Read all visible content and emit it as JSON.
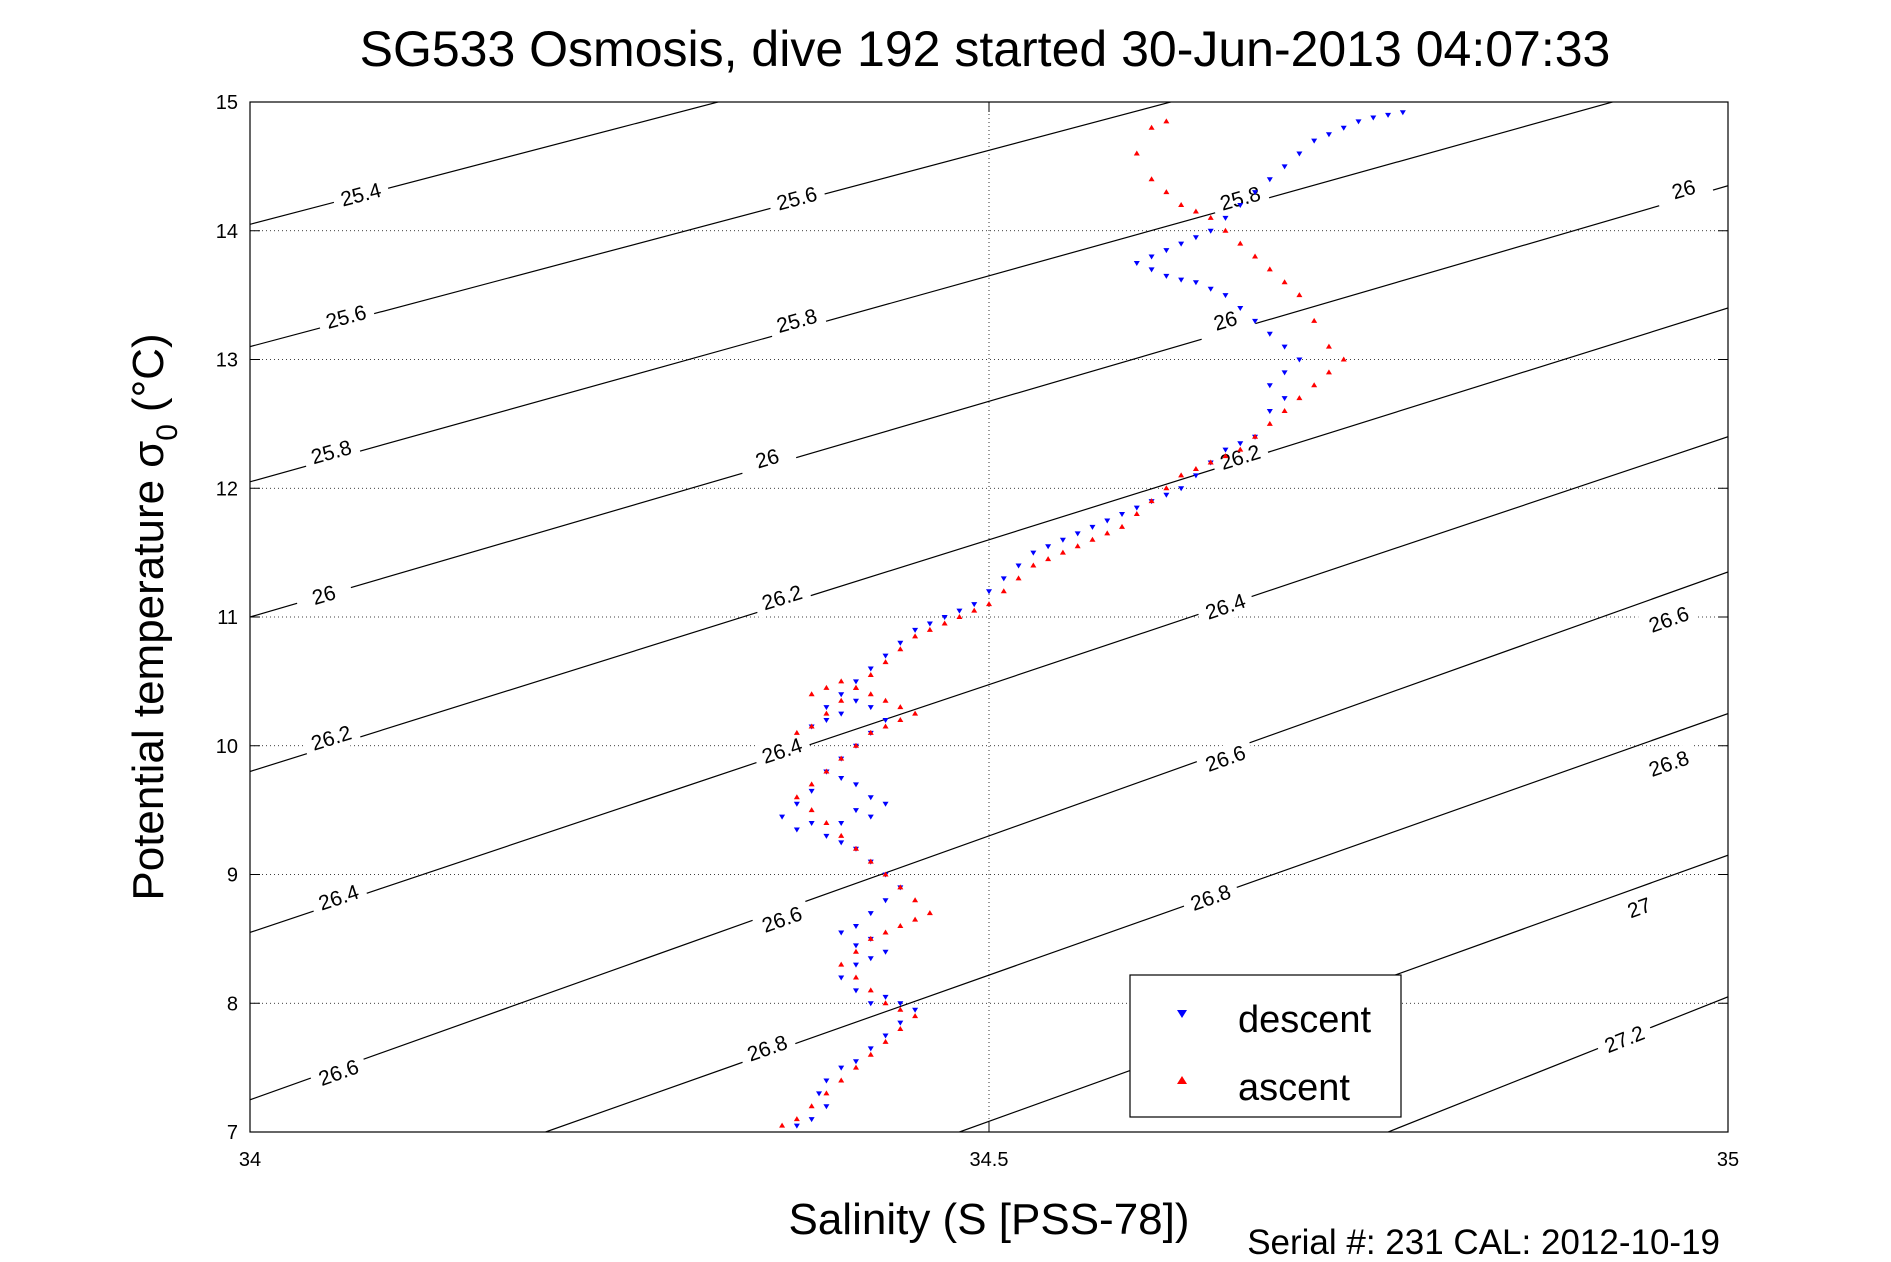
{
  "chart_data": {
    "type": "scatter",
    "title": "SG533 Osmosis, dive 192 started 30-Jun-2013 04:07:33",
    "xlabel": "Salinity (S [PSS-78])",
    "ylabel": "Potential temperature",
    "ylabel_symbol": "σ",
    "ylabel_subscript": "0",
    "ylabel_unit": "(°C)",
    "xlim": [
      34,
      35
    ],
    "ylim": [
      7,
      15
    ],
    "xticks": [
      34,
      34.5,
      35
    ],
    "xtick_labels": [
      "34",
      "34.5",
      "35"
    ],
    "yticks": [
      7,
      8,
      9,
      10,
      11,
      12,
      13,
      14,
      15
    ],
    "ytick_labels": [
      "7",
      "8",
      "9",
      "10",
      "11",
      "12",
      "13",
      "14",
      "15"
    ],
    "grid": true,
    "legend_position": "bottom-right",
    "footer": "Serial #: 231  CAL: 2012-10-19",
    "contour_levels": [
      {
        "level": 25.4,
        "label": "25.4",
        "line": [
          [
            34.0,
            14.05
          ],
          [
            35.0,
            17.05
          ]
        ],
        "label_positions": [
          [
            34.075,
            14.28
          ]
        ]
      },
      {
        "level": 25.6,
        "label": "25.6",
        "line": [
          [
            34.0,
            13.1
          ],
          [
            35.0,
            16.15
          ]
        ],
        "label_positions": [
          [
            34.065,
            13.33
          ],
          [
            34.37,
            14.25
          ]
        ]
      },
      {
        "level": 25.8,
        "label": "25.8",
        "line": [
          [
            34.0,
            12.05
          ],
          [
            35.0,
            15.25
          ]
        ],
        "label_positions": [
          [
            34.055,
            12.28
          ],
          [
            34.37,
            13.3
          ],
          [
            34.67,
            14.25
          ]
        ]
      },
      {
        "level": 26,
        "label": "26",
        "line": [
          [
            34.0,
            11.0
          ],
          [
            35.0,
            14.35
          ]
        ],
        "label_positions": [
          [
            34.05,
            11.17
          ],
          [
            34.35,
            12.23
          ],
          [
            34.66,
            13.3
          ],
          [
            34.97,
            14.32
          ]
        ]
      },
      {
        "level": 26.2,
        "label": "26.2",
        "line": [
          [
            34.0,
            9.8
          ],
          [
            35.0,
            13.4
          ]
        ],
        "label_positions": [
          [
            34.055,
            10.06
          ],
          [
            34.36,
            11.15
          ],
          [
            34.67,
            12.24
          ]
        ]
      },
      {
        "level": 26.4,
        "label": "26.4",
        "line": [
          [
            34.0,
            8.55
          ],
          [
            35.0,
            12.4
          ]
        ],
        "label_positions": [
          [
            34.06,
            8.82
          ],
          [
            34.36,
            9.96
          ],
          [
            34.66,
            11.08
          ]
        ]
      },
      {
        "level": 26.6,
        "label": "26.6",
        "line": [
          [
            34.0,
            7.25
          ],
          [
            35.0,
            11.35
          ]
        ],
        "label_positions": [
          [
            34.06,
            7.46
          ],
          [
            34.36,
            8.65
          ],
          [
            34.66,
            9.9
          ],
          [
            34.96,
            10.98
          ]
        ]
      },
      {
        "level": 26.8,
        "label": "26.8",
        "line": [
          [
            34.2,
            7.0
          ],
          [
            35.0,
            10.25
          ]
        ],
        "label_positions": [
          [
            34.35,
            7.65
          ],
          [
            34.65,
            8.82
          ],
          [
            34.96,
            9.86
          ]
        ]
      },
      {
        "level": 27,
        "label": "27",
        "line": [
          [
            34.48,
            7.0
          ],
          [
            35.0,
            9.15
          ]
        ],
        "label_positions": [
          [
            34.94,
            8.74
          ]
        ]
      },
      {
        "level": 27.2,
        "label": "27.2",
        "line": [
          [
            34.77,
            7.0
          ],
          [
            35.0,
            8.05
          ]
        ],
        "label_positions": [
          [
            34.93,
            7.72
          ]
        ]
      }
    ],
    "series": [
      {
        "name": "descent",
        "color": "#0000ff",
        "marker": "triangle-down",
        "x": [
          34.37,
          34.38,
          34.39,
          34.385,
          34.39,
          34.4,
          34.41,
          34.42,
          34.43,
          34.44,
          34.45,
          34.44,
          34.43,
          34.42,
          34.41,
          34.4,
          34.41,
          34.42,
          34.43,
          34.42,
          34.41,
          34.4,
          34.41,
          34.42,
          34.43,
          34.44,
          34.43,
          34.42,
          34.41,
          34.4,
          34.39,
          34.4,
          34.41,
          34.42,
          34.43,
          34.42,
          34.41,
          34.4,
          34.39,
          34.38,
          34.37,
          34.36,
          34.37,
          34.38,
          34.39,
          34.4,
          34.41,
          34.42,
          34.43,
          34.42,
          34.41,
          34.4,
          34.39,
          34.38,
          34.39,
          34.4,
          34.41,
          34.42,
          34.43,
          34.44,
          34.45,
          34.46,
          34.47,
          34.48,
          34.49,
          34.5,
          34.51,
          34.52,
          34.53,
          34.54,
          34.55,
          34.56,
          34.57,
          34.58,
          34.59,
          34.6,
          34.61,
          34.62,
          34.63,
          34.64,
          34.65,
          34.66,
          34.67,
          34.68,
          34.69,
          34.7,
          34.69,
          34.7,
          34.71,
          34.7,
          34.69,
          34.68,
          34.67,
          34.66,
          34.65,
          34.64,
          34.63,
          34.62,
          34.61,
          34.6,
          34.61,
          34.62,
          34.63,
          34.64,
          34.65,
          34.66,
          34.67,
          34.68,
          34.69,
          34.7,
          34.71,
          34.72,
          34.73,
          34.74,
          34.75,
          34.76,
          34.77,
          34.78
        ],
        "y": [
          7.05,
          7.1,
          7.2,
          7.3,
          7.4,
          7.5,
          7.55,
          7.65,
          7.75,
          7.85,
          7.95,
          8.0,
          8.05,
          8.0,
          8.1,
          8.2,
          8.3,
          8.35,
          8.4,
          8.5,
          8.45,
          8.55,
          8.6,
          8.7,
          8.8,
          8.9,
          9.0,
          9.1,
          9.2,
          9.25,
          9.3,
          9.4,
          9.5,
          9.45,
          9.55,
          9.6,
          9.7,
          9.75,
          9.8,
          9.4,
          9.35,
          9.45,
          9.55,
          9.65,
          9.8,
          9.9,
          10.0,
          10.1,
          10.2,
          10.3,
          10.35,
          10.25,
          10.2,
          10.15,
          10.3,
          10.4,
          10.5,
          10.6,
          10.7,
          10.8,
          10.9,
          10.95,
          11.0,
          11.05,
          11.1,
          11.2,
          11.3,
          11.4,
          11.5,
          11.55,
          11.6,
          11.65,
          11.7,
          11.75,
          11.8,
          11.85,
          11.9,
          11.95,
          12.0,
          12.1,
          12.2,
          12.3,
          12.35,
          12.4,
          12.6,
          12.7,
          12.8,
          12.9,
          13.0,
          13.1,
          13.2,
          13.3,
          13.4,
          13.5,
          13.55,
          13.6,
          13.62,
          13.65,
          13.7,
          13.75,
          13.8,
          13.85,
          13.9,
          13.95,
          14.0,
          14.1,
          14.2,
          14.3,
          14.4,
          14.5,
          14.6,
          14.7,
          14.75,
          14.8,
          14.85,
          14.88,
          14.9,
          14.92
        ]
      },
      {
        "name": "ascent",
        "color": "#ff0000",
        "marker": "triangle-up",
        "x": [
          34.36,
          34.37,
          34.38,
          34.39,
          34.4,
          34.41,
          34.42,
          34.43,
          34.44,
          34.45,
          34.44,
          34.43,
          34.42,
          34.41,
          34.4,
          34.41,
          34.42,
          34.43,
          34.44,
          34.45,
          34.46,
          34.45,
          34.44,
          34.43,
          34.42,
          34.41,
          34.4,
          34.39,
          34.38,
          34.37,
          34.38,
          34.39,
          34.4,
          34.41,
          34.42,
          34.43,
          34.44,
          34.45,
          34.44,
          34.43,
          34.42,
          34.41,
          34.4,
          34.39,
          34.38,
          34.37,
          34.38,
          34.39,
          34.4,
          34.41,
          34.42,
          34.43,
          34.44,
          34.45,
          34.46,
          34.47,
          34.48,
          34.49,
          34.5,
          34.51,
          34.52,
          34.53,
          34.54,
          34.55,
          34.56,
          34.57,
          34.58,
          34.59,
          34.6,
          34.61,
          34.62,
          34.63,
          34.64,
          34.65,
          34.66,
          34.67,
          34.68,
          34.69,
          34.7,
          34.71,
          34.72,
          34.73,
          34.74,
          34.73,
          34.72,
          34.71,
          34.7,
          34.69,
          34.68,
          34.67,
          34.66,
          34.65,
          34.64,
          34.63,
          34.62,
          34.61,
          34.6,
          34.61,
          34.62
        ],
        "y": [
          7.05,
          7.1,
          7.2,
          7.3,
          7.4,
          7.5,
          7.6,
          7.7,
          7.8,
          7.9,
          7.95,
          8.0,
          8.1,
          8.2,
          8.3,
          8.4,
          8.5,
          8.55,
          8.6,
          8.65,
          8.7,
          8.8,
          8.9,
          9.0,
          9.1,
          9.2,
          9.3,
          9.4,
          9.5,
          9.6,
          9.7,
          9.8,
          9.9,
          10.0,
          10.1,
          10.15,
          10.2,
          10.25,
          10.3,
          10.35,
          10.4,
          10.45,
          10.5,
          10.45,
          10.4,
          10.1,
          10.15,
          10.25,
          10.35,
          10.45,
          10.55,
          10.65,
          10.75,
          10.85,
          10.9,
          10.95,
          11.0,
          11.05,
          11.1,
          11.2,
          11.3,
          11.4,
          11.45,
          11.5,
          11.55,
          11.6,
          11.65,
          11.7,
          11.8,
          11.9,
          12.0,
          12.1,
          12.15,
          12.2,
          12.25,
          12.3,
          12.4,
          12.5,
          12.6,
          12.7,
          12.8,
          12.9,
          13.0,
          13.1,
          13.3,
          13.5,
          13.6,
          13.7,
          13.8,
          13.9,
          14.0,
          14.1,
          14.15,
          14.2,
          14.3,
          14.4,
          14.6,
          14.8,
          14.85
        ]
      }
    ]
  }
}
